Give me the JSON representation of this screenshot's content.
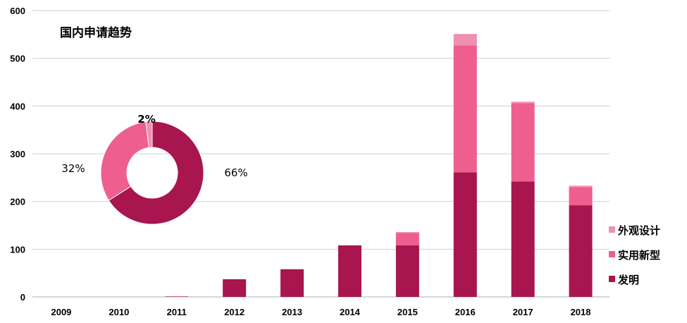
{
  "chart_data": [
    {
      "type": "bar",
      "stacked": true,
      "title": "国内申请趋势",
      "categories": [
        "2009",
        "2010",
        "2011",
        "2012",
        "2013",
        "2014",
        "2015",
        "2016",
        "2017",
        "2018"
      ],
      "series": [
        {
          "name": "发明",
          "color": "#A8154F",
          "values": [
            0,
            0,
            1,
            37,
            58,
            108,
            108,
            261,
            242,
            192
          ]
        },
        {
          "name": "实用新型",
          "color": "#EE5E8E",
          "values": [
            0,
            0,
            0,
            0,
            0,
            0,
            26,
            266,
            164,
            38
          ]
        },
        {
          "name": "外观设计",
          "color": "#F08FB0",
          "values": [
            0,
            0,
            0,
            0,
            0,
            0,
            2,
            24,
            3,
            3
          ]
        }
      ],
      "ylim": [
        0,
        600
      ],
      "yticks": [
        0,
        100,
        200,
        300,
        400,
        500,
        600
      ],
      "grid": true,
      "legend": "right"
    },
    {
      "type": "pie",
      "donut": true,
      "slices": [
        {
          "name": "发明",
          "value": 66,
          "label": "66%",
          "color": "#A8154F"
        },
        {
          "name": "实用新型",
          "value": 32,
          "label": "32%",
          "color": "#EE5E8E"
        },
        {
          "name": "外观设计",
          "value": 2,
          "label": "2%",
          "color": "#F08FB0"
        }
      ]
    }
  ]
}
